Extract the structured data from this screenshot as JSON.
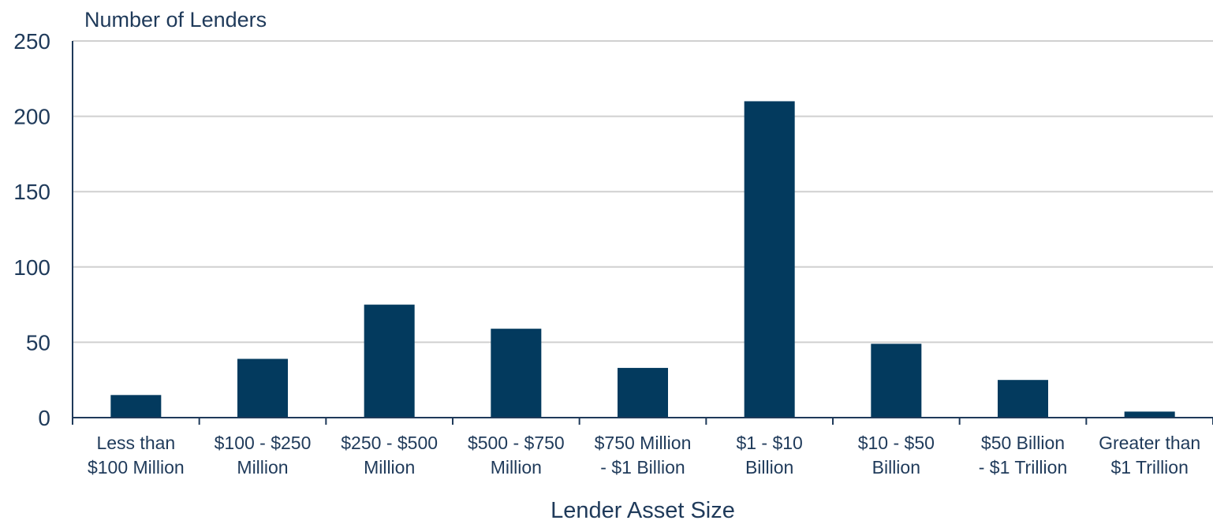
{
  "chart_data": {
    "type": "bar",
    "ylabel": "Number of Lenders",
    "xlabel": "Lender Asset Size",
    "ylim": [
      0,
      250
    ],
    "yticks": [
      0,
      50,
      100,
      150,
      200,
      250
    ],
    "grid": true,
    "categories": [
      [
        "Less than",
        "$100 Million"
      ],
      [
        "$100 - $250",
        "Million"
      ],
      [
        "$250 - $500",
        "Million"
      ],
      [
        "$500 - $750",
        "Million"
      ],
      [
        "$750 Million",
        "- $1 Billion"
      ],
      [
        "$1 - $10",
        "Billion"
      ],
      [
        "$10 - $50",
        "Billion"
      ],
      [
        "$50 Billion",
        "- $1 Trillion"
      ],
      [
        "Greater than",
        "$1 Trillion"
      ]
    ],
    "values": [
      15,
      39,
      75,
      59,
      33,
      210,
      49,
      25,
      4
    ],
    "colors": {
      "bar": "#033a5e",
      "grid": "#d0d0d0",
      "axis": "#1f3a5a",
      "text": "#1f3a5a"
    }
  }
}
